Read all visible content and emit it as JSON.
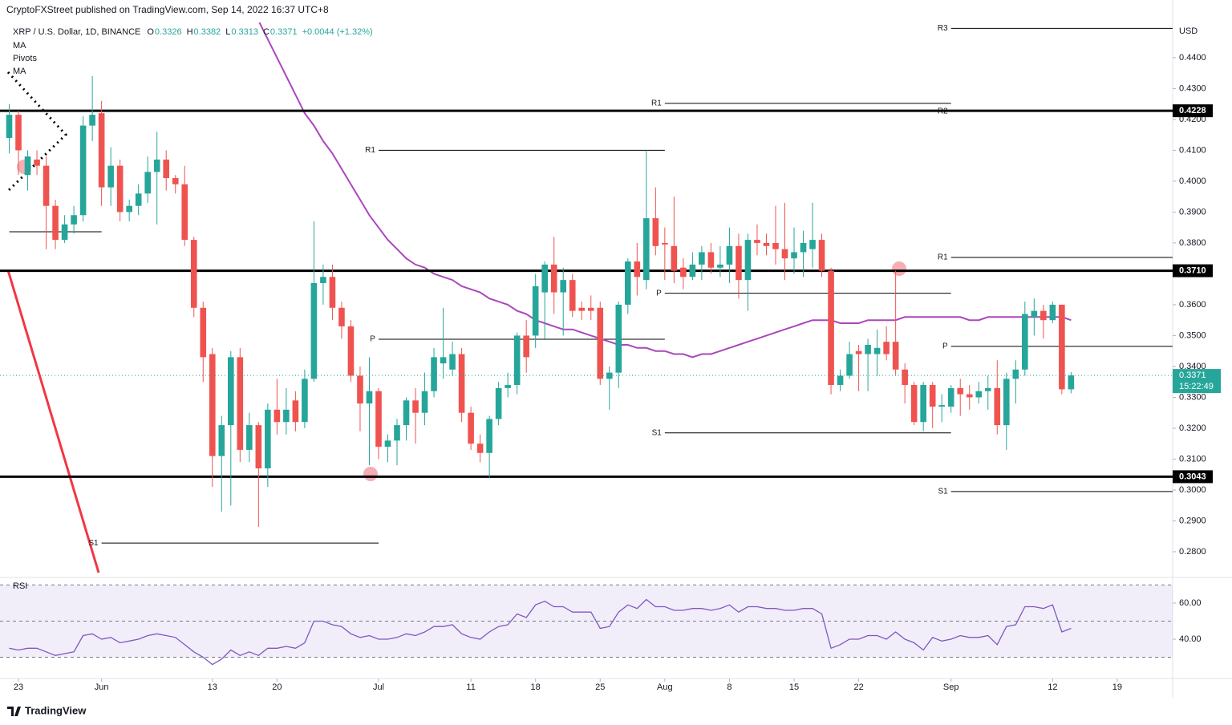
{
  "chart_data": {
    "type": "candlestick",
    "header": "CryptoFXStreet published on TradingView.com, Sep 14, 2022 16:37 UTC+8",
    "title": "XRP / U.S. Dollar, 1D, BINANCE",
    "ohlc_legend": [
      {
        "label": "O",
        "value": 0.3326
      },
      {
        "label": "H",
        "value": 0.3382
      },
      {
        "label": "L",
        "value": 0.3313
      },
      {
        "label": "C",
        "value": 0.3371
      }
    ],
    "change": "+0.0044 (+1.32%)",
    "indicators": [
      "MA",
      "Pivots",
      "MA"
    ],
    "currency": "USD",
    "up_color": "#26a69a",
    "down_color": "#ef5350",
    "xlim": [
      "2022-05-21",
      "2022-09-25"
    ],
    "ylim": [
      0.2722,
      0.4514
    ],
    "yticks": [
      {
        "value": 0.28,
        "label": "0.2800"
      },
      {
        "value": 0.29,
        "label": "0.2900"
      },
      {
        "value": 0.3,
        "label": "0.3000"
      },
      {
        "value": 0.31,
        "label": "0.3100"
      },
      {
        "value": 0.32,
        "label": "0.3200"
      },
      {
        "value": 0.33,
        "label": "0.3300"
      },
      {
        "value": 0.34,
        "label": "0.3400"
      },
      {
        "value": 0.35,
        "label": "0.3500"
      },
      {
        "value": 0.36,
        "label": "0.3600"
      },
      {
        "value": 0.37,
        "label": "0.3700"
      },
      {
        "value": 0.38,
        "label": "0.3800"
      },
      {
        "value": 0.39,
        "label": "0.3900"
      },
      {
        "value": 0.4,
        "label": "0.4000"
      },
      {
        "value": 0.41,
        "label": "0.4100"
      },
      {
        "value": 0.42,
        "label": "0.4200"
      },
      {
        "value": 0.43,
        "label": "0.4300"
      },
      {
        "value": 0.44,
        "label": "0.4400"
      }
    ],
    "xticks": [
      {
        "value": "2022-05-23",
        "label": "23"
      },
      {
        "value": "2022-06-01",
        "label": "Jun"
      },
      {
        "value": "2022-06-13",
        "label": "13"
      },
      {
        "value": "2022-06-20",
        "label": "20"
      },
      {
        "value": "2022-07-01",
        "label": "Jul"
      },
      {
        "value": "2022-07-11",
        "label": "11"
      },
      {
        "value": "2022-07-18",
        "label": "18"
      },
      {
        "value": "2022-07-25",
        "label": "25"
      },
      {
        "value": "2022-08-01",
        "label": "Aug"
      },
      {
        "value": "2022-08-08",
        "label": "8"
      },
      {
        "value": "2022-08-15",
        "label": "15"
      },
      {
        "value": "2022-08-22",
        "label": "22"
      },
      {
        "value": "2022-09-01",
        "label": "Sep"
      },
      {
        "value": "2022-09-12",
        "label": "12"
      },
      {
        "value": "2022-09-19",
        "label": "19"
      }
    ],
    "levels": [
      {
        "value": 0.4228,
        "label": "0.4228"
      },
      {
        "value": 0.371,
        "label": "0.3710"
      },
      {
        "value": 0.3043,
        "label": "0.3043"
      }
    ],
    "last_price": {
      "value": 0.3371,
      "label": "0.3371",
      "countdown": "15:22:49"
    },
    "pivots": [
      {
        "label": null,
        "value": 0.3836,
        "start": "2022-05-22",
        "end": "2022-06-01"
      },
      {
        "label": "S1",
        "value": 0.2828,
        "start": "2022-06-01",
        "end": "2022-07-01"
      },
      {
        "label": "R1",
        "value": 0.41,
        "start": "2022-07-01",
        "end": "2022-08-01"
      },
      {
        "label": "P",
        "value": 0.3488,
        "start": "2022-07-01",
        "end": "2022-08-01"
      },
      {
        "label": "R1",
        "value": 0.4252,
        "start": "2022-08-01",
        "end": "2022-09-01"
      },
      {
        "label": "P",
        "value": 0.3637,
        "start": "2022-08-01",
        "end": "2022-09-01"
      },
      {
        "label": "S1",
        "value": 0.3185,
        "start": "2022-08-01",
        "end": "2022-09-01"
      },
      {
        "label": "R3",
        "value": 0.4495,
        "start": "2022-09-01",
        "end": "2022-09-25"
      },
      {
        "label": "R2",
        "value": 0.4226,
        "start": "2022-09-01",
        "end": "2022-09-25"
      },
      {
        "label": "R1",
        "value": 0.3753,
        "start": "2022-09-01",
        "end": "2022-09-25"
      },
      {
        "label": "P",
        "value": 0.3465,
        "start": "2022-09-01",
        "end": "2022-09-25"
      },
      {
        "label": "S1",
        "value": 0.2995,
        "start": "2022-09-01",
        "end": "2022-09-25"
      }
    ],
    "candles": [
      [
        "2022-05-22",
        0.414,
        0.425,
        0.409,
        0.4215
      ],
      [
        "2022-05-23",
        0.4215,
        0.4228,
        0.402,
        0.41
      ],
      [
        "2022-05-24",
        0.402,
        0.41,
        0.397,
        0.408
      ],
      [
        "2022-05-25",
        0.407,
        0.41,
        0.402,
        0.405
      ],
      [
        "2022-05-26",
        0.405,
        0.408,
        0.378,
        0.392
      ],
      [
        "2022-05-27",
        0.392,
        0.394,
        0.378,
        0.381
      ],
      [
        "2022-05-28",
        0.381,
        0.389,
        0.38,
        0.386
      ],
      [
        "2022-05-29",
        0.386,
        0.392,
        0.383,
        0.389
      ],
      [
        "2022-05-30",
        0.389,
        0.421,
        0.387,
        0.418
      ],
      [
        "2022-05-31",
        0.418,
        0.434,
        0.413,
        0.4215
      ],
      [
        "2022-06-01",
        0.422,
        0.426,
        0.392,
        0.398
      ],
      [
        "2022-06-02",
        0.398,
        0.411,
        0.392,
        0.405
      ],
      [
        "2022-06-03",
        0.405,
        0.407,
        0.387,
        0.39
      ],
      [
        "2022-06-04",
        0.39,
        0.394,
        0.387,
        0.392
      ],
      [
        "2022-06-05",
        0.392,
        0.399,
        0.389,
        0.396
      ],
      [
        "2022-06-06",
        0.396,
        0.408,
        0.393,
        0.403
      ],
      [
        "2022-06-07",
        0.403,
        0.416,
        0.386,
        0.407
      ],
      [
        "2022-06-08",
        0.407,
        0.41,
        0.397,
        0.401
      ],
      [
        "2022-06-09",
        0.401,
        0.402,
        0.396,
        0.399
      ],
      [
        "2022-06-10",
        0.399,
        0.405,
        0.379,
        0.381
      ],
      [
        "2022-06-11",
        0.381,
        0.382,
        0.356,
        0.359
      ],
      [
        "2022-06-12",
        0.359,
        0.361,
        0.335,
        0.343
      ],
      [
        "2022-06-13",
        0.344,
        0.346,
        0.301,
        0.311
      ],
      [
        "2022-06-14",
        0.311,
        0.324,
        0.293,
        0.321
      ],
      [
        "2022-06-15",
        0.321,
        0.345,
        0.295,
        0.343
      ],
      [
        "2022-06-16",
        0.343,
        0.346,
        0.309,
        0.313
      ],
      [
        "2022-06-17",
        0.313,
        0.325,
        0.309,
        0.321
      ],
      [
        "2022-06-18",
        0.321,
        0.322,
        0.288,
        0.307
      ],
      [
        "2022-06-19",
        0.307,
        0.328,
        0.301,
        0.326
      ],
      [
        "2022-06-20",
        0.326,
        0.336,
        0.318,
        0.322
      ],
      [
        "2022-06-21",
        0.322,
        0.333,
        0.318,
        0.326
      ],
      [
        "2022-06-22",
        0.329,
        0.332,
        0.319,
        0.322
      ],
      [
        "2022-06-23",
        0.322,
        0.339,
        0.32,
        0.336
      ],
      [
        "2022-06-24",
        0.336,
        0.387,
        0.335,
        0.367
      ],
      [
        "2022-06-25",
        0.367,
        0.373,
        0.36,
        0.369
      ],
      [
        "2022-06-26",
        0.369,
        0.373,
        0.355,
        0.359
      ],
      [
        "2022-06-27",
        0.359,
        0.361,
        0.349,
        0.353
      ],
      [
        "2022-06-28",
        0.353,
        0.355,
        0.335,
        0.337
      ],
      [
        "2022-06-29",
        0.337,
        0.34,
        0.319,
        0.328
      ],
      [
        "2022-06-30",
        0.328,
        0.343,
        0.308,
        0.332
      ],
      [
        "2022-07-01",
        0.332,
        0.333,
        0.31,
        0.314
      ],
      [
        "2022-07-02",
        0.314,
        0.318,
        0.309,
        0.316
      ],
      [
        "2022-07-03",
        0.316,
        0.323,
        0.308,
        0.321
      ],
      [
        "2022-07-04",
        0.321,
        0.33,
        0.316,
        0.329
      ],
      [
        "2022-07-05",
        0.329,
        0.333,
        0.315,
        0.325
      ],
      [
        "2022-07-06",
        0.325,
        0.338,
        0.321,
        0.332
      ],
      [
        "2022-07-07",
        0.332,
        0.346,
        0.33,
        0.343
      ],
      [
        "2022-07-08",
        0.341,
        0.359,
        0.336,
        0.343
      ],
      [
        "2022-07-09",
        0.339,
        0.348,
        0.337,
        0.344
      ],
      [
        "2022-07-10",
        0.344,
        0.346,
        0.322,
        0.325
      ],
      [
        "2022-07-11",
        0.325,
        0.327,
        0.313,
        0.315
      ],
      [
        "2022-07-12",
        0.315,
        0.318,
        0.309,
        0.312
      ],
      [
        "2022-07-13",
        0.312,
        0.324,
        0.304,
        0.323
      ],
      [
        "2022-07-14",
        0.323,
        0.335,
        0.321,
        0.333
      ],
      [
        "2022-07-15",
        0.333,
        0.338,
        0.33,
        0.334
      ],
      [
        "2022-07-16",
        0.334,
        0.351,
        0.331,
        0.35
      ],
      [
        "2022-07-17",
        0.35,
        0.355,
        0.338,
        0.343
      ],
      [
        "2022-07-18",
        0.35,
        0.37,
        0.346,
        0.366
      ],
      [
        "2022-07-19",
        0.364,
        0.374,
        0.349,
        0.373
      ],
      [
        "2022-07-20",
        0.373,
        0.382,
        0.357,
        0.364
      ],
      [
        "2022-07-21",
        0.364,
        0.372,
        0.35,
        0.368
      ],
      [
        "2022-07-22",
        0.368,
        0.37,
        0.356,
        0.358
      ],
      [
        "2022-07-23",
        0.359,
        0.361,
        0.355,
        0.358
      ],
      [
        "2022-07-24",
        0.359,
        0.363,
        0.355,
        0.358
      ],
      [
        "2022-07-25",
        0.359,
        0.361,
        0.334,
        0.336
      ],
      [
        "2022-07-26",
        0.336,
        0.34,
        0.326,
        0.338
      ],
      [
        "2022-07-27",
        0.338,
        0.361,
        0.333,
        0.36
      ],
      [
        "2022-07-28",
        0.36,
        0.375,
        0.357,
        0.374
      ],
      [
        "2022-07-29",
        0.374,
        0.38,
        0.363,
        0.369
      ],
      [
        "2022-07-30",
        0.368,
        0.41,
        0.365,
        0.388
      ],
      [
        "2022-07-31",
        0.388,
        0.398,
        0.376,
        0.379
      ],
      [
        "2022-08-01",
        0.38,
        0.385,
        0.368,
        0.3795
      ],
      [
        "2022-08-02",
        0.379,
        0.395,
        0.367,
        0.371
      ],
      [
        "2022-08-03",
        0.372,
        0.375,
        0.365,
        0.369
      ],
      [
        "2022-08-04",
        0.369,
        0.377,
        0.368,
        0.373
      ],
      [
        "2022-08-05",
        0.373,
        0.379,
        0.368,
        0.377
      ],
      [
        "2022-08-06",
        0.377,
        0.38,
        0.37,
        0.372
      ],
      [
        "2022-08-07",
        0.372,
        0.379,
        0.369,
        0.373
      ],
      [
        "2022-08-08",
        0.373,
        0.385,
        0.367,
        0.379
      ],
      [
        "2022-08-09",
        0.379,
        0.383,
        0.362,
        0.368
      ],
      [
        "2022-08-10",
        0.368,
        0.383,
        0.358,
        0.381
      ],
      [
        "2022-08-11",
        0.381,
        0.386,
        0.376,
        0.38
      ],
      [
        "2022-08-12",
        0.38,
        0.383,
        0.376,
        0.379
      ],
      [
        "2022-08-13",
        0.38,
        0.392,
        0.373,
        0.378
      ],
      [
        "2022-08-14",
        0.378,
        0.393,
        0.368,
        0.375
      ],
      [
        "2022-08-15",
        0.375,
        0.385,
        0.37,
        0.377
      ],
      [
        "2022-08-16",
        0.377,
        0.384,
        0.369,
        0.38
      ],
      [
        "2022-08-17",
        0.378,
        0.393,
        0.372,
        0.381
      ],
      [
        "2022-08-18",
        0.381,
        0.383,
        0.369,
        0.371
      ],
      [
        "2022-08-19",
        0.371,
        0.372,
        0.331,
        0.334
      ],
      [
        "2022-08-20",
        0.334,
        0.339,
        0.332,
        0.337
      ],
      [
        "2022-08-21",
        0.337,
        0.348,
        0.336,
        0.344
      ],
      [
        "2022-08-22",
        0.345,
        0.347,
        0.332,
        0.344
      ],
      [
        "2022-08-23",
        0.344,
        0.349,
        0.332,
        0.347
      ],
      [
        "2022-08-24",
        0.344,
        0.352,
        0.337,
        0.346
      ],
      [
        "2022-08-25",
        0.348,
        0.353,
        0.342,
        0.344
      ],
      [
        "2022-08-26",
        0.348,
        0.371,
        0.337,
        0.339
      ],
      [
        "2022-08-27",
        0.339,
        0.341,
        0.328,
        0.334
      ],
      [
        "2022-08-28",
        0.334,
        0.335,
        0.321,
        0.322
      ],
      [
        "2022-08-29",
        0.322,
        0.335,
        0.319,
        0.334
      ],
      [
        "2022-08-30",
        0.334,
        0.335,
        0.32,
        0.327
      ],
      [
        "2022-08-31",
        0.327,
        0.331,
        0.322,
        0.3275
      ],
      [
        "2022-09-01",
        0.327,
        0.334,
        0.325,
        0.333
      ],
      [
        "2022-09-02",
        0.333,
        0.336,
        0.324,
        0.331
      ],
      [
        "2022-09-03",
        0.331,
        0.334,
        0.326,
        0.33
      ],
      [
        "2022-09-04",
        0.33,
        0.335,
        0.328,
        0.332
      ],
      [
        "2022-09-05",
        0.332,
        0.337,
        0.326,
        0.333
      ],
      [
        "2022-09-06",
        0.333,
        0.342,
        0.318,
        0.321
      ],
      [
        "2022-09-07",
        0.321,
        0.338,
        0.313,
        0.336
      ],
      [
        "2022-09-08",
        0.336,
        0.342,
        0.328,
        0.339
      ],
      [
        "2022-09-09",
        0.339,
        0.361,
        0.337,
        0.357
      ],
      [
        "2022-09-10",
        0.356,
        0.362,
        0.35,
        0.358
      ],
      [
        "2022-09-11",
        0.358,
        0.36,
        0.349,
        0.355
      ],
      [
        "2022-09-12",
        0.355,
        0.361,
        0.354,
        0.36
      ],
      [
        "2022-09-13",
        0.36,
        0.36,
        0.331,
        0.3326
      ],
      [
        "2022-09-14",
        0.3326,
        0.3382,
        0.3313,
        0.3371
      ]
    ],
    "ma": {
      "color": "#ab47bc",
      "values": [
        null,
        null,
        null,
        null,
        null,
        null,
        null,
        null,
        null,
        null,
        null,
        null,
        null,
        null,
        null,
        null,
        null,
        null,
        null,
        null,
        null,
        null,
        null,
        null,
        null,
        null,
        null,
        0.452,
        0.446,
        0.44,
        0.434,
        0.428,
        0.422,
        0.418,
        0.413,
        0.409,
        0.404,
        0.399,
        0.394,
        0.389,
        0.385,
        0.381,
        0.378,
        0.375,
        0.373,
        0.372,
        0.37,
        0.369,
        0.368,
        0.366,
        0.365,
        0.364,
        0.362,
        0.361,
        0.36,
        0.358,
        0.357,
        0.355,
        0.354,
        0.353,
        0.352,
        0.352,
        0.351,
        0.35,
        0.349,
        0.348,
        0.347,
        0.347,
        0.346,
        0.346,
        0.345,
        0.345,
        0.344,
        0.344,
        0.343,
        0.344,
        0.344,
        0.345,
        0.346,
        0.347,
        0.348,
        0.349,
        0.35,
        0.351,
        0.352,
        0.353,
        0.354,
        0.355,
        0.355,
        0.355,
        0.354,
        0.354,
        0.354,
        0.355,
        0.355,
        0.355,
        0.355,
        0.356,
        0.356,
        0.356,
        0.356,
        0.356,
        0.356,
        0.356,
        0.355,
        0.355,
        0.356,
        0.356,
        0.356,
        0.356,
        0.356,
        0.356,
        0.356,
        0.356,
        0.356,
        0.355
      ]
    },
    "rsi": {
      "name": "RSI",
      "color": "#7e57c2",
      "ylim": [
        18.7,
        73.3
      ],
      "levels": [
        70,
        50,
        30
      ],
      "yticks": [
        {
          "value": 60,
          "label": "60.00"
        },
        {
          "value": 40,
          "label": "40.00"
        }
      ],
      "values": [
        35,
        34,
        35,
        35,
        33,
        31,
        32,
        33,
        42,
        43,
        40,
        41,
        38,
        39,
        40,
        42,
        43,
        42,
        41,
        37,
        33,
        30,
        26,
        29,
        34,
        31,
        33,
        31,
        35,
        35,
        36,
        35,
        38,
        50,
        50,
        48,
        47,
        43,
        41,
        42,
        40,
        40,
        41,
        43,
        42,
        44,
        47,
        47,
        48,
        43,
        41,
        40,
        44,
        47,
        48,
        54,
        52,
        59,
        61,
        58,
        58,
        55,
        55,
        55,
        46,
        47,
        55,
        59,
        57,
        62,
        58,
        58,
        56,
        56,
        57,
        57,
        56,
        57,
        59,
        55,
        58,
        58,
        57,
        57,
        56,
        56,
        57,
        57,
        54,
        35,
        37,
        40,
        40,
        42,
        42,
        40,
        44,
        40,
        38,
        34,
        41,
        39,
        40,
        42,
        41,
        41,
        42,
        37,
        47,
        48,
        58,
        58,
        57,
        59,
        44,
        46
      ]
    },
    "footer": "TradingView"
  }
}
